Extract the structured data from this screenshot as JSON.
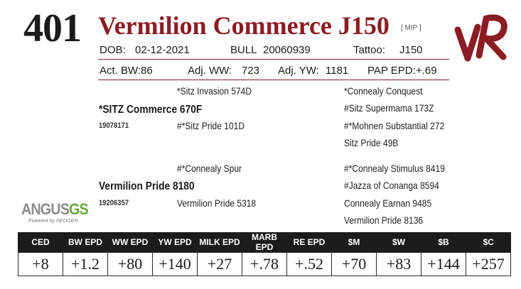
{
  "header": {
    "lot_number": "401",
    "name": "Vermilion Commerce J150",
    "tag": "[ MIP ]",
    "brand_logo": "VR"
  },
  "info_row1": {
    "dob_label": "DOB:",
    "dob": "02-12-2021",
    "sex": "BULL",
    "registration": "20060939",
    "tattoo_label": "Tattoo:",
    "tattoo": "J150"
  },
  "info_row2": {
    "act_bw_label": "Act. BW:",
    "act_bw": "86",
    "adj_ww_label": "Adj. WW:",
    "adj_ww": "723",
    "adj_yw_label": "Adj. YW:",
    "adj_yw": "1181",
    "pap_label": "PAP EPD:",
    "pap": "+.69"
  },
  "pedigree": {
    "sire": "*SITZ Commerce 670F",
    "sire_reg": "19078171",
    "sire_sire": "*Sitz Invasion 574D",
    "sire_dam": "#*Sitz Pride 101D",
    "sss": "*Connealy Conquest",
    "ssd": "#Sitz Supermama 173Z",
    "sds": "#*Mohnen Substantial 272",
    "sdd": "Sitz Pride 49B",
    "dam": "Vermilion Pride 8180",
    "dam_reg": "19206357",
    "dam_sire": "#*Connealy Spur",
    "dam_dam": "Vermilion Pride 5318",
    "dss": "#*Connealy Stimulus 8419",
    "dsd": "#Jazza of Conanga 8594",
    "dds": "Connealy Earnan 9485",
    "ddd": "Vermilion Pride 8136"
  },
  "logo_text": {
    "angus": "ANGUS",
    "gs": "GS",
    "powered": "Powered by NEOGEN"
  },
  "epd_table": {
    "headers": [
      "CED",
      "BW EPD",
      "WW EPD",
      "YW EPD",
      "MILK EPD",
      "MARB EPD",
      "RE EPD",
      "$M",
      "$W",
      "$B",
      "$C"
    ],
    "values": [
      "+8",
      "+1.2",
      "+80",
      "+140",
      "+27",
      "+.78",
      "+.52",
      "+70",
      "+83",
      "+144",
      "+257"
    ]
  },
  "colors": {
    "accent": "#8c1c24",
    "header_bg": "#1c1c1c",
    "logo_gray": "#8a8d90",
    "logo_green": "#6aa640"
  }
}
